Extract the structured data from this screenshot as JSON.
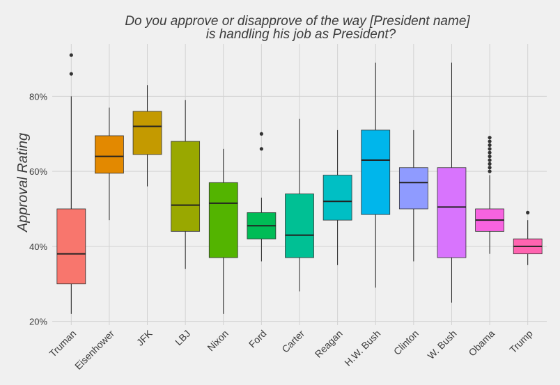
{
  "chart_data": {
    "type": "box",
    "title_lines": [
      "Do you approve or disapprove of the way [President name]",
      "is handling his job as President?"
    ],
    "xlabel": "",
    "ylabel": "Approval Rating",
    "ylim": [
      19,
      94
    ],
    "yticks": [
      {
        "value": 20,
        "label": "20%"
      },
      {
        "value": 40,
        "label": "40%"
      },
      {
        "value": 60,
        "label": "60%"
      },
      {
        "value": 80,
        "label": "80%"
      }
    ],
    "grid": true,
    "legend": "none",
    "categories": [
      "Truman",
      "Eisenhower",
      "JFK",
      "LBJ",
      "Nixon",
      "Ford",
      "Carter",
      "Reagan",
      "H.W. Bush",
      "Clinton",
      "W. Bush",
      "Obama",
      "Trump"
    ],
    "boxes": [
      {
        "min": 22,
        "q1": 30,
        "median": 38,
        "q3": 50,
        "max": 80,
        "outliers": [
          86,
          91
        ],
        "color": "#f8766d"
      },
      {
        "min": 47,
        "q1": 59.5,
        "median": 64,
        "q3": 69.5,
        "max": 77,
        "outliers": [],
        "color": "#e38900"
      },
      {
        "min": 56,
        "q1": 64.5,
        "median": 72,
        "q3": 76,
        "max": 83,
        "outliers": [],
        "color": "#c49a00"
      },
      {
        "min": 34,
        "q1": 44,
        "median": 51,
        "q3": 68,
        "max": 79,
        "outliers": [],
        "color": "#99a800"
      },
      {
        "min": 22,
        "q1": 37,
        "median": 51.5,
        "q3": 57,
        "max": 66,
        "outliers": [],
        "color": "#53b400"
      },
      {
        "min": 36,
        "q1": 42,
        "median": 45.5,
        "q3": 49,
        "max": 53,
        "outliers": [
          66,
          70
        ],
        "color": "#00bc56"
      },
      {
        "min": 28,
        "q1": 37,
        "median": 43,
        "q3": 54,
        "max": 74,
        "outliers": [],
        "color": "#00c094"
      },
      {
        "min": 35,
        "q1": 47,
        "median": 52,
        "q3": 59,
        "max": 71,
        "outliers": [],
        "color": "#00bfc4"
      },
      {
        "min": 29,
        "q1": 48.5,
        "median": 63,
        "q3": 71,
        "max": 89,
        "outliers": [],
        "color": "#00b6eb"
      },
      {
        "min": 36,
        "q1": 50,
        "median": 57,
        "q3": 61,
        "max": 71,
        "outliers": [],
        "color": "#8f9bff"
      },
      {
        "min": 25,
        "q1": 37,
        "median": 50.5,
        "q3": 61,
        "max": 89,
        "outliers": [],
        "color": "#d874fd"
      },
      {
        "min": 38,
        "q1": 44,
        "median": 47,
        "q3": 50,
        "max": 59,
        "outliers": [
          60,
          61,
          62,
          63,
          64,
          65,
          66,
          67,
          68,
          69
        ],
        "color": "#f763e0"
      },
      {
        "min": 35,
        "q1": 38,
        "median": 40,
        "q3": 42,
        "max": 47,
        "outliers": [
          49
        ],
        "color": "#ff64b0"
      }
    ]
  }
}
